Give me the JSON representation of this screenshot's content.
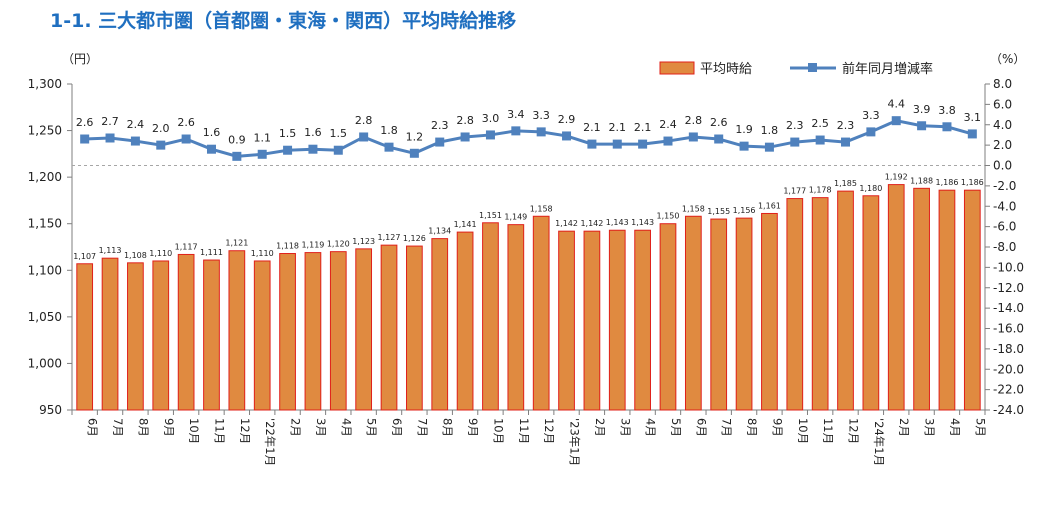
{
  "title": "1-1. 三大都市圏（首都圏・東海・関西）平均時給推移",
  "chart_data": {
    "type": "bar+line",
    "title": "1-1. 三大都市圏（首都圏・東海・関西）平均時給推移",
    "categories": [
      "6月",
      "7月",
      "8月",
      "9月",
      "10月",
      "11月",
      "12月",
      "'22年1月",
      "2月",
      "3月",
      "4月",
      "5月",
      "6月",
      "7月",
      "8月",
      "9月",
      "10月",
      "11月",
      "12月",
      "'23年1月",
      "2月",
      "3月",
      "4月",
      "5月",
      "6月",
      "7月",
      "8月",
      "9月",
      "10月",
      "11月",
      "12月",
      "'24年1月",
      "2月",
      "3月",
      "4月",
      "5月"
    ],
    "left_axis": {
      "unit": "（円）",
      "ylim": [
        950,
        1300
      ],
      "ticks": [
        "950",
        "1,000",
        "1,050",
        "1,100",
        "1,150",
        "1,200",
        "1,250",
        "1,300"
      ]
    },
    "right_axis": {
      "unit": "（%）",
      "ylim": [
        -24,
        8
      ],
      "ticks": [
        "8.0",
        "6.0",
        "4.0",
        "2.0",
        "0.0",
        "-2.0",
        "-4.0",
        "-6.0",
        "-8.0",
        "-10.0",
        "-12.0",
        "-14.0",
        "-16.0",
        "-18.0",
        "-20.0",
        "-22.0",
        "-24.0"
      ]
    },
    "series": [
      {
        "name": "平均時給",
        "type": "bar",
        "axis": "left",
        "color": "#e08a40",
        "edge": "#e0201a",
        "values": [
          1107,
          1113,
          1108,
          1110,
          1117,
          1111,
          1121,
          1110,
          1118,
          1119,
          1120,
          1123,
          1127,
          1126,
          1134,
          1141,
          1151,
          1149,
          1158,
          1142,
          1142,
          1143,
          1143,
          1150,
          1158,
          1155,
          1156,
          1161,
          1177,
          1178,
          1185,
          1180,
          1192,
          1188,
          1186,
          1186
        ],
        "labels": [
          "1,107",
          "1,113",
          "1,108",
          "1,110",
          "1,117",
          "1,111",
          "1,121",
          "1,110",
          "1,118",
          "1,119",
          "1,120",
          "1,123",
          "1,127",
          "1,126",
          "1,134",
          "1,141",
          "1,151",
          "1,149",
          "1,158",
          "1,142",
          "1,142",
          "1,143",
          "1,143",
          "1,150",
          "1,158",
          "1,155",
          "1,156",
          "1,161",
          "1,177",
          "1,178",
          "1,185",
          "1,180",
          "1,192",
          "1,188",
          "1,186",
          "1,186"
        ]
      },
      {
        "name": "前年同月増減率",
        "type": "line",
        "axis": "right",
        "color": "#4f81bd",
        "values": [
          2.6,
          2.7,
          2.4,
          2.0,
          2.6,
          1.6,
          0.9,
          1.1,
          1.5,
          1.6,
          1.5,
          2.8,
          1.8,
          1.2,
          2.3,
          2.8,
          3.0,
          3.4,
          3.3,
          2.9,
          2.1,
          2.1,
          2.1,
          2.4,
          2.8,
          2.6,
          1.9,
          1.8,
          2.3,
          2.5,
          2.3,
          3.3,
          4.4,
          3.9,
          3.8,
          3.1
        ],
        "labels": [
          "2.6",
          "2.7",
          "2.4",
          "2.0",
          "2.6",
          "1.6",
          "0.9",
          "1.1",
          "1.5",
          "1.6",
          "1.5",
          "2.8",
          "1.8",
          "1.2",
          "2.3",
          "2.8",
          "3.0",
          "3.4",
          "3.3",
          "2.9",
          "2.1",
          "2.1",
          "2.1",
          "2.4",
          "2.8",
          "2.6",
          "1.9",
          "1.8",
          "2.3",
          "2.5",
          "2.3",
          "3.3",
          "4.4",
          "3.9",
          "3.8",
          "3.1"
        ]
      }
    ],
    "grid": false,
    "zero_line": "dashed",
    "legend": "top-right"
  }
}
